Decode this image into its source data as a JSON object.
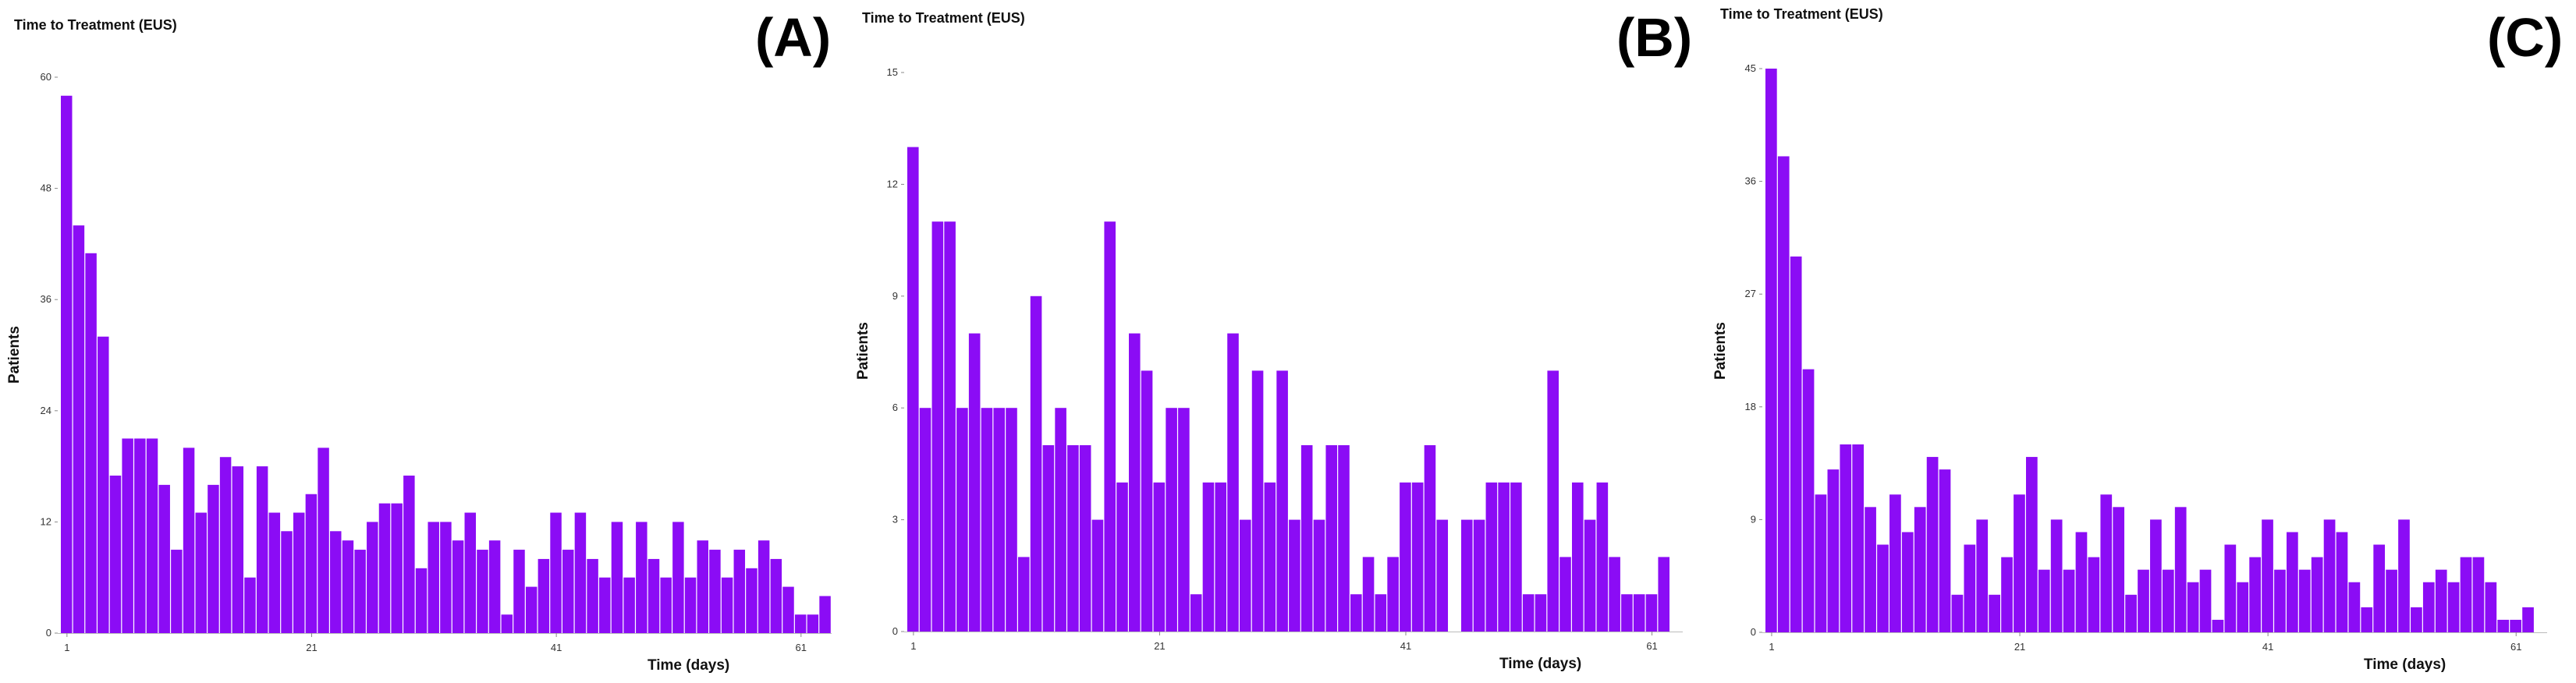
{
  "chart_data": [
    {
      "type": "bar",
      "panel": "(A)",
      "title": "Time to Treatment (EUS)",
      "xlabel": "Time (days)",
      "ylabel": "Patients",
      "color": "#8b0cf5",
      "ylim": [
        0,
        60
      ],
      "yticks": [
        0,
        12,
        24,
        36,
        48,
        60
      ],
      "xticks": [
        1,
        21,
        41,
        61
      ],
      "x": [
        1,
        2,
        3,
        4,
        5,
        6,
        7,
        8,
        9,
        10,
        11,
        12,
        13,
        14,
        15,
        16,
        17,
        18,
        19,
        20,
        21,
        22,
        23,
        24,
        25,
        26,
        27,
        28,
        29,
        30,
        31,
        32,
        33,
        34,
        35,
        36,
        37,
        38,
        39,
        40,
        41,
        42,
        43,
        44,
        45,
        46,
        47,
        48,
        49,
        50,
        51,
        52,
        53,
        54,
        55,
        56,
        57,
        58,
        59,
        60,
        61,
        62,
        63
      ],
      "values": [
        58,
        44,
        41,
        32,
        17,
        21,
        21,
        21,
        16,
        9,
        20,
        13,
        16,
        19,
        18,
        6,
        18,
        13,
        11,
        13,
        15,
        20,
        11,
        10,
        9,
        12,
        14,
        14,
        17,
        7,
        12,
        12,
        10,
        13,
        9,
        10,
        2,
        9,
        5,
        8,
        13,
        9,
        13,
        8,
        6,
        12,
        6,
        12,
        8,
        6,
        12,
        6,
        10,
        9,
        6,
        9,
        7,
        10,
        8,
        5,
        2,
        2,
        4
      ]
    },
    {
      "type": "bar",
      "panel": "(B)",
      "title": "Time to Treatment (EUS)",
      "xlabel": "Time (days)",
      "ylabel": "Patients",
      "color": "#8b0cf5",
      "ylim": [
        0,
        15
      ],
      "yticks": [
        0,
        3,
        6,
        9,
        12,
        15
      ],
      "xticks": [
        1,
        21,
        41,
        61
      ],
      "x": [
        1,
        2,
        3,
        4,
        5,
        6,
        7,
        8,
        9,
        10,
        11,
        12,
        13,
        14,
        15,
        16,
        17,
        18,
        19,
        20,
        21,
        22,
        23,
        24,
        25,
        26,
        27,
        28,
        29,
        30,
        31,
        32,
        33,
        34,
        35,
        36,
        37,
        38,
        39,
        40,
        41,
        42,
        43,
        44,
        45,
        46,
        47,
        48,
        49,
        50,
        51,
        52,
        53,
        54,
        55,
        56,
        57,
        58,
        59,
        60,
        61,
        62,
        63
      ],
      "values": [
        13,
        6,
        11,
        11,
        6,
        8,
        6,
        6,
        6,
        2,
        9,
        5,
        6,
        5,
        5,
        3,
        11,
        4,
        8,
        7,
        4,
        6,
        6,
        1,
        4,
        4,
        8,
        3,
        7,
        4,
        7,
        3,
        5,
        3,
        5,
        5,
        1,
        2,
        1,
        2,
        4,
        4,
        5,
        3,
        0,
        3,
        3,
        4,
        4,
        4,
        1,
        1,
        7,
        2,
        4,
        3,
        4,
        2,
        1,
        1,
        1,
        2,
        0
      ]
    },
    {
      "type": "bar",
      "panel": "(C)",
      "title": "Time to Treatment (EUS)",
      "xlabel": "Time (days)",
      "ylabel": "Patients",
      "color": "#8b0cf5",
      "ylim": [
        0,
        45
      ],
      "yticks": [
        0,
        9,
        18,
        27,
        36,
        45
      ],
      "xticks": [
        1,
        21,
        41,
        61
      ],
      "x": [
        1,
        2,
        3,
        4,
        5,
        6,
        7,
        8,
        9,
        10,
        11,
        12,
        13,
        14,
        15,
        16,
        17,
        18,
        19,
        20,
        21,
        22,
        23,
        24,
        25,
        26,
        27,
        28,
        29,
        30,
        31,
        32,
        33,
        34,
        35,
        36,
        37,
        38,
        39,
        40,
        41,
        42,
        43,
        44,
        45,
        46,
        47,
        48,
        49,
        50,
        51,
        52,
        53,
        54,
        55,
        56,
        57,
        58,
        59,
        60,
        61,
        62,
        63
      ],
      "values": [
        45,
        38,
        30,
        21,
        11,
        13,
        15,
        15,
        10,
        7,
        11,
        8,
        10,
        14,
        13,
        3,
        7,
        9,
        3,
        6,
        11,
        14,
        5,
        9,
        5,
        8,
        6,
        11,
        10,
        3,
        5,
        9,
        5,
        10,
        4,
        5,
        1,
        7,
        4,
        6,
        9,
        5,
        8,
        5,
        6,
        9,
        8,
        4,
        2,
        7,
        5,
        9,
        2,
        4,
        5,
        4,
        6,
        6,
        4,
        1,
        1,
        2,
        0
      ]
    }
  ]
}
